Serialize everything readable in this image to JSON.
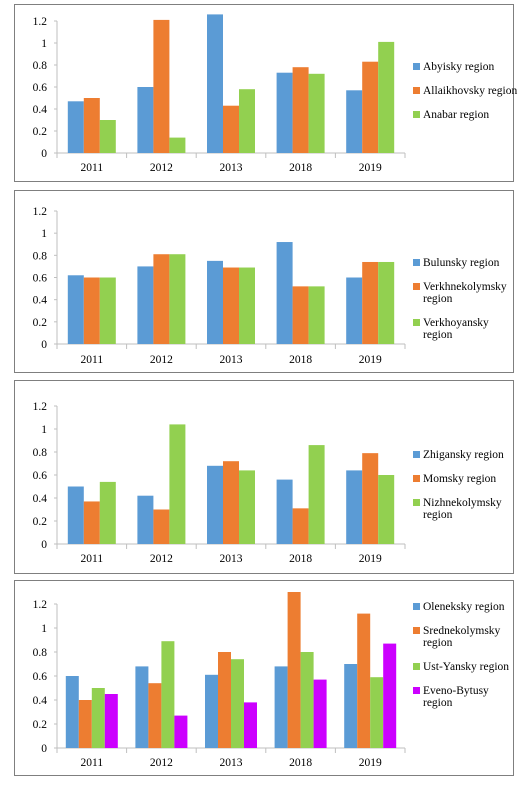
{
  "colors": [
    "#5b9bd5",
    "#ed7d31",
    "#92d050",
    "#cc00ff"
  ],
  "chart_data": [
    {
      "type": "bar",
      "categories": [
        "2011",
        "2012",
        "2013",
        "2018",
        "2019"
      ],
      "ylim": [
        0,
        1.2
      ],
      "yticks": [
        "0",
        "0.2",
        "0.4",
        "0.6",
        "0.8",
        "1",
        "1.2"
      ],
      "grid": false,
      "legend_position": "right",
      "series": [
        {
          "name": "Abyisky region",
          "values": [
            0.47,
            0.6,
            1.26,
            0.73,
            0.57
          ]
        },
        {
          "name": "Allaikhovsky region",
          "values": [
            0.5,
            1.21,
            0.43,
            0.78,
            0.83
          ]
        },
        {
          "name": "Anabar region",
          "values": [
            0.3,
            0.14,
            0.58,
            0.72,
            1.01
          ]
        }
      ]
    },
    {
      "type": "bar",
      "categories": [
        "2011",
        "2012",
        "2013",
        "2018",
        "2019"
      ],
      "ylim": [
        0,
        1.2
      ],
      "yticks": [
        "0",
        "0.2",
        "0.4",
        "0.6",
        "0.8",
        "1",
        "1.2"
      ],
      "grid": false,
      "legend_position": "right",
      "series": [
        {
          "name": "Bulunsky region",
          "values": [
            0.62,
            0.7,
            0.75,
            0.92,
            0.6
          ]
        },
        {
          "name": "Verkhnekolymsky region",
          "values": [
            0.6,
            0.81,
            0.69,
            0.52,
            0.74
          ]
        },
        {
          "name": "Verkhoyansky region",
          "values": [
            0.6,
            0.81,
            0.69,
            0.52,
            0.74
          ]
        }
      ]
    },
    {
      "type": "bar",
      "categories": [
        "2011",
        "2012",
        "2013",
        "2018",
        "2019"
      ],
      "ylim": [
        0,
        1.2
      ],
      "yticks": [
        "0",
        "0.2",
        "0.4",
        "0.6",
        "0.8",
        "1",
        "1.2"
      ],
      "grid": false,
      "legend_position": "right",
      "series": [
        {
          "name": "Zhigansky region",
          "values": [
            0.5,
            0.42,
            0.68,
            0.56,
            0.64
          ]
        },
        {
          "name": "Momsky region",
          "values": [
            0.37,
            0.3,
            0.72,
            0.31,
            0.79
          ]
        },
        {
          "name": "Nizhnekolymsky region",
          "values": [
            0.54,
            1.04,
            0.64,
            0.86,
            0.6
          ]
        }
      ]
    },
    {
      "type": "bar",
      "categories": [
        "2011",
        "2012",
        "2013",
        "2018",
        "2019"
      ],
      "ylim": [
        0,
        1.2
      ],
      "yticks": [
        "0",
        "0.2",
        "0.4",
        "0.6",
        "0.8",
        "1",
        "1.2"
      ],
      "grid": false,
      "legend_position": "right",
      "series": [
        {
          "name": "Oleneksky region",
          "values": [
            0.6,
            0.68,
            0.61,
            0.68,
            0.7
          ]
        },
        {
          "name": "Srednekolymsky region",
          "values": [
            0.4,
            0.54,
            0.8,
            1.3,
            1.12
          ]
        },
        {
          "name": "Ust-Yansky region",
          "values": [
            0.5,
            0.89,
            0.74,
            0.8,
            0.59
          ]
        },
        {
          "name": "Eveno-Bytusy region",
          "values": [
            0.45,
            0.27,
            0.38,
            0.57,
            0.87
          ]
        }
      ]
    }
  ]
}
